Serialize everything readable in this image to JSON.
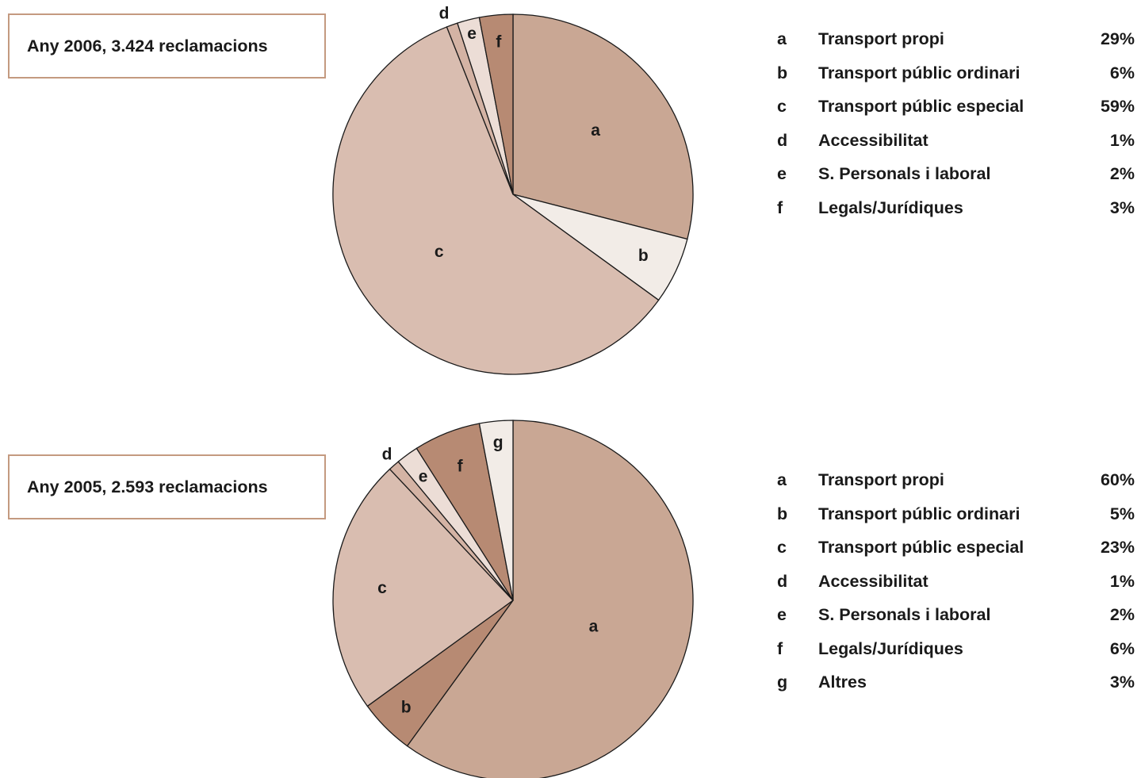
{
  "colors": {
    "a": "#c9a794",
    "b": "#f2ece7",
    "c": "#d9bdb0",
    "d": "#d4b3a4",
    "e": "#ecddd6",
    "f": "#b78a73",
    "g": "#f2ece7",
    "b_2005": "#b78a73",
    "d_2005": "#d4b3a4",
    "outline": "#1a1a1a",
    "box_border": "#c49a80"
  },
  "chart_data": [
    {
      "type": "pie",
      "title": "Any 2006, 3.424 reclamacions",
      "slices": [
        {
          "letter": "a",
          "name": "Transport propi",
          "value": 29,
          "pct_label": "29%"
        },
        {
          "letter": "b",
          "name": "Transport públic ordinari",
          "value": 6,
          "pct_label": "6%"
        },
        {
          "letter": "c",
          "name": "Transport públic especial",
          "value": 59,
          "pct_label": "59%"
        },
        {
          "letter": "d",
          "name": "Accessibilitat",
          "value": 1,
          "pct_label": "1%"
        },
        {
          "letter": "e",
          "name": "S. Personals i laboral",
          "value": 2,
          "pct_label": "2%"
        },
        {
          "letter": "f",
          "name": "Legals/Jurídiques",
          "value": 3,
          "pct_label": "3%"
        }
      ]
    },
    {
      "type": "pie",
      "title": "Any 2005, 2.593 reclamacions",
      "slices": [
        {
          "letter": "a",
          "name": "Transport propi",
          "value": 60,
          "pct_label": "60%"
        },
        {
          "letter": "b",
          "name": "Transport públic ordinari",
          "value": 5,
          "pct_label": "5%"
        },
        {
          "letter": "c",
          "name": "Transport públic especial",
          "value": 23,
          "pct_label": "23%"
        },
        {
          "letter": "d",
          "name": "Accessibilitat",
          "value": 1,
          "pct_label": "1%"
        },
        {
          "letter": "e",
          "name": "S. Personals i laboral",
          "value": 2,
          "pct_label": "2%"
        },
        {
          "letter": "f",
          "name": "Legals/Jurídiques",
          "value": 6,
          "pct_label": "6%"
        },
        {
          "letter": "g",
          "name": "Altres",
          "value": 3,
          "pct_label": "3%"
        }
      ]
    }
  ]
}
